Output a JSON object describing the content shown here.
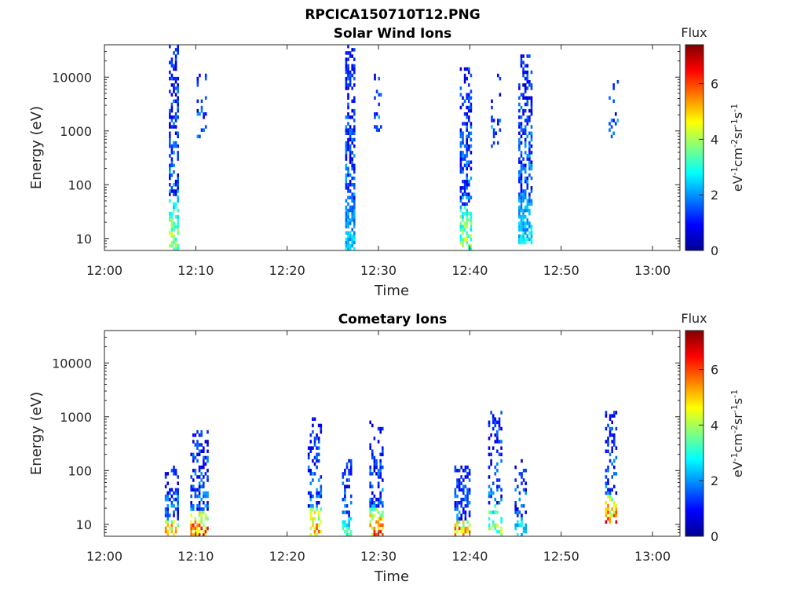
{
  "figure_title": "RPCICA150710T12.PNG",
  "chart_data": [
    {
      "type": "heatmap",
      "title": "Solar Wind Ions",
      "xlabel": "Time",
      "ylabel": "Energy (eV)",
      "x_ticks": [
        "12:00",
        "12:10",
        "12:20",
        "12:30",
        "12:40",
        "12:50",
        "13:00"
      ],
      "x_range_minutes": [
        0,
        63
      ],
      "y_scale": "log",
      "y_ticks": [
        10,
        100,
        1000,
        10000
      ],
      "y_range": [
        6,
        40000
      ],
      "colorbar": {
        "title": "Flux",
        "label": "eV-1cm-2sr-1s-1",
        "ticks": [
          0,
          2,
          4,
          6
        ],
        "range": [
          0,
          7.4
        ],
        "colormap": "jet"
      },
      "bursts": [
        {
          "t": 7.6,
          "w": 1.1,
          "emax": 38000,
          "emin": 6,
          "low_flux": 5.0,
          "density": 0.65
        },
        {
          "t": 10.8,
          "w": 1.4,
          "emax": 11000,
          "emin": 700,
          "low_flux": 2.2,
          "density": 0.25
        },
        {
          "t": 26.9,
          "w": 1.1,
          "emax": 38000,
          "emin": 6,
          "low_flux": 3.0,
          "density": 0.75
        },
        {
          "t": 30.0,
          "w": 1.0,
          "emax": 15000,
          "emin": 800,
          "low_flux": 2.0,
          "density": 0.2
        },
        {
          "t": 39.6,
          "w": 1.4,
          "emax": 15000,
          "emin": 6,
          "low_flux": 5.0,
          "density": 0.6
        },
        {
          "t": 42.9,
          "w": 1.2,
          "emax": 15000,
          "emin": 500,
          "low_flux": 2.2,
          "density": 0.25
        },
        {
          "t": 46.1,
          "w": 1.6,
          "emax": 28000,
          "emin": 8,
          "low_flux": 3.2,
          "density": 0.7
        },
        {
          "t": 55.8,
          "w": 1.2,
          "emax": 11000,
          "emin": 700,
          "low_flux": 2.2,
          "density": 0.25
        }
      ]
    },
    {
      "type": "heatmap",
      "title": "Cometary Ions",
      "xlabel": "Time",
      "ylabel": "Energy (eV)",
      "x_ticks": [
        "12:00",
        "12:10",
        "12:20",
        "12:30",
        "12:40",
        "12:50",
        "13:00"
      ],
      "x_range_minutes": [
        0,
        63
      ],
      "y_scale": "log",
      "y_ticks": [
        10,
        100,
        1000,
        10000
      ],
      "y_range": [
        6,
        40000
      ],
      "colorbar": {
        "title": "Flux",
        "label": "eV-1cm-2sr-1s-1",
        "ticks": [
          0,
          2,
          4,
          6
        ],
        "range": [
          0,
          7.4
        ],
        "colormap": "jet"
      },
      "bursts": [
        {
          "t": 7.4,
          "w": 1.6,
          "emax": 120,
          "emin": 6,
          "low_flux": 7.0,
          "density": 0.6
        },
        {
          "t": 10.4,
          "w": 2.0,
          "emax": 600,
          "emin": 6,
          "low_flux": 7.2,
          "density": 0.55
        },
        {
          "t": 23.0,
          "w": 1.5,
          "emax": 1000,
          "emin": 6,
          "low_flux": 6.6,
          "density": 0.5
        },
        {
          "t": 26.6,
          "w": 1.2,
          "emax": 160,
          "emin": 6,
          "low_flux": 4.0,
          "density": 0.45
        },
        {
          "t": 29.8,
          "w": 1.6,
          "emax": 800,
          "emin": 6,
          "low_flux": 7.0,
          "density": 0.5
        },
        {
          "t": 39.2,
          "w": 1.8,
          "emax": 120,
          "emin": 6,
          "low_flux": 7.2,
          "density": 0.6
        },
        {
          "t": 42.8,
          "w": 1.6,
          "emax": 1300,
          "emin": 6,
          "low_flux": 5.0,
          "density": 0.45
        },
        {
          "t": 45.6,
          "w": 1.4,
          "emax": 160,
          "emin": 6,
          "low_flux": 3.5,
          "density": 0.45
        },
        {
          "t": 55.5,
          "w": 1.4,
          "emax": 1300,
          "emin": 10,
          "low_flux": 7.0,
          "density": 0.5
        }
      ]
    }
  ]
}
